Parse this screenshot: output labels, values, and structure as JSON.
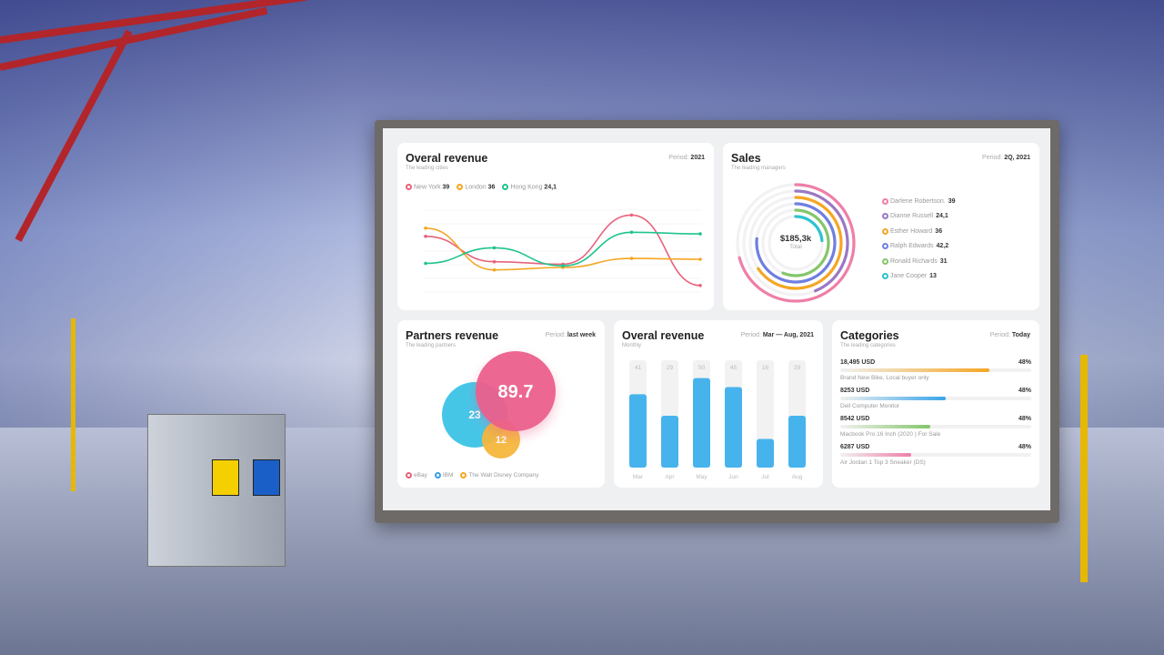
{
  "overall_revenue_cities": {
    "title": "Overal revenue",
    "subtitle": "The leading cities",
    "period_label": "Period:",
    "period": "2021",
    "legend": [
      {
        "name": "New York",
        "value": "39",
        "color": "#e8637a"
      },
      {
        "name": "London",
        "value": "36",
        "color": "#f5a623"
      },
      {
        "name": "Hong Kong",
        "value": "24,1",
        "color": "#1fc48e"
      }
    ]
  },
  "sales": {
    "title": "Sales",
    "subtitle": "The leading managers",
    "period_label": "Period:",
    "period": "2Q, 2021",
    "total": "$185,3k",
    "total_label": "Total",
    "managers": [
      {
        "name": "Darlene Robertson.",
        "value": "39",
        "color": "#ee7fa8"
      },
      {
        "name": "Dianne Russell",
        "value": "24,1",
        "color": "#9a78c4"
      },
      {
        "name": "Esther Howard",
        "value": "36",
        "color": "#f5a623"
      },
      {
        "name": "Ralph Edwards",
        "value": "42,2",
        "color": "#6f7fe0"
      },
      {
        "name": "Ronald Richards",
        "value": "31",
        "color": "#84c66a"
      },
      {
        "name": "Jane Cooper",
        "value": "13",
        "color": "#2cc3d0"
      }
    ]
  },
  "partners": {
    "title": "Partners revenue",
    "subtitle": "The leading partners",
    "period_label": "Period:",
    "period": "last week",
    "bubbles": [
      {
        "partner": "eBay",
        "value": "89.7",
        "color": "#ec5f8c"
      },
      {
        "partner": "IBM",
        "value": "23",
        "color": "#3cc3e6"
      },
      {
        "partner": "The Walt Disney Company",
        "value": "12",
        "color": "#f6b73c"
      }
    ],
    "legend": [
      {
        "name": "eBay",
        "color": "#e8637a"
      },
      {
        "name": "IBM",
        "color": "#3a9ee6"
      },
      {
        "name": "The Walt Disney Company",
        "color": "#f5a623"
      }
    ]
  },
  "monthly": {
    "title": "Overal revenue",
    "subtitle": "Monthly",
    "period_label": "Period:",
    "period": "Mar — Aug, 2021"
  },
  "categories": {
    "title": "Categories",
    "subtitle": "The leading categories",
    "period_label": "Period:",
    "period": "Today",
    "items": [
      {
        "amount": "18,495 USD",
        "percent": "48%",
        "name": "Brand New Bike, Local buyer only",
        "fill": 0.78,
        "color": "#f5a623"
      },
      {
        "amount": "8253 USD",
        "percent": "48%",
        "name": "Dell Computer Monitor",
        "fill": 0.55,
        "color": "#3aa4e8"
      },
      {
        "amount": "8542 USD",
        "percent": "48%",
        "name": "Macbook Pro 16 Inch (2020 ) For Sale",
        "fill": 0.47,
        "color": "#84c66a"
      },
      {
        "amount": "6287 USD",
        "percent": "48%",
        "name": "Air Jordan 1 Top 3 Sneaker (DS)",
        "fill": 0.37,
        "color": "#ee7fa8"
      }
    ]
  },
  "chart_data": [
    {
      "type": "line",
      "series": [
        {
          "name": "New York",
          "values": [
            68,
            37,
            34,
            94,
            8
          ]
        },
        {
          "name": "London",
          "values": [
            78,
            27,
            30,
            41,
            40
          ]
        },
        {
          "name": "Hong Kong",
          "values": [
            35,
            54,
            32,
            73,
            71
          ]
        }
      ],
      "ylim": [
        0,
        100
      ]
    },
    {
      "type": "bar",
      "categories": [
        "Mar",
        "Apr",
        "May",
        "Jun",
        "Jul",
        "Aug"
      ],
      "values": [
        41,
        29,
        50,
        45,
        16,
        29
      ]
    }
  ]
}
